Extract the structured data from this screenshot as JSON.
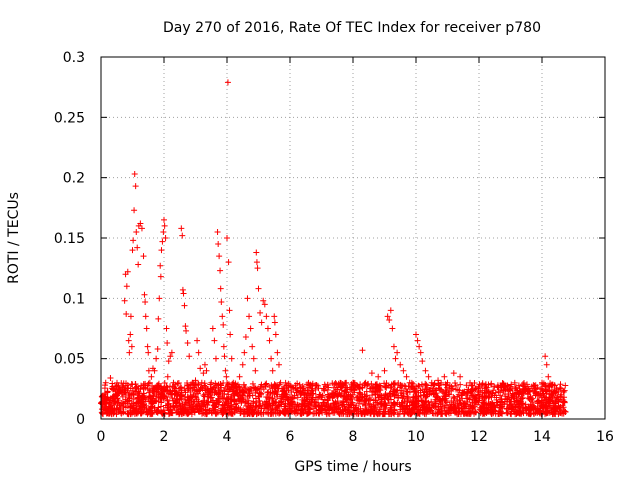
{
  "chart_data": {
    "type": "scatter",
    "title": "Day 270 of 2016, Rate Of TEC Index for receiver p780",
    "xlabel": "GPS time / hours",
    "ylabel": "ROTI / TECUs",
    "xlim": [
      0,
      16
    ],
    "ylim": [
      0,
      0.3
    ],
    "x_ticks": [
      0,
      2,
      4,
      6,
      8,
      10,
      12,
      14,
      16
    ],
    "x_tick_labels": [
      "0",
      "2",
      "4",
      "6",
      "8",
      "10",
      "12",
      "14",
      "16"
    ],
    "y_ticks": [
      0,
      0.05,
      0.1,
      0.15,
      0.2,
      0.25,
      0.3
    ],
    "y_tick_labels": [
      "0",
      "0.05",
      "0.1",
      "0.15",
      "0.2",
      "0.25",
      "0.3"
    ],
    "grid": true,
    "marker": "+",
    "color": "#ff0000",
    "series": [
      {
        "name": "ROTI",
        "points": [
          [
            0.05,
            0.012
          ],
          [
            0.1,
            0.018
          ],
          [
            0.15,
            0.03
          ],
          [
            0.2,
            0.022
          ],
          [
            0.3,
            0.034
          ],
          [
            0.4,
            0.025
          ],
          [
            0.5,
            0.02
          ],
          [
            0.55,
            0.028
          ],
          [
            0.6,
            0.024
          ],
          [
            0.7,
            0.026
          ],
          [
            0.75,
            0.098
          ],
          [
            0.78,
            0.12
          ],
          [
            0.8,
            0.087
          ],
          [
            0.82,
            0.11
          ],
          [
            0.85,
            0.122
          ],
          [
            0.88,
            0.065
          ],
          [
            0.9,
            0.055
          ],
          [
            0.93,
            0.07
          ],
          [
            0.95,
            0.085
          ],
          [
            0.98,
            0.06
          ],
          [
            1.0,
            0.14
          ],
          [
            1.02,
            0.148
          ],
          [
            1.05,
            0.173
          ],
          [
            1.07,
            0.203
          ],
          [
            1.1,
            0.193
          ],
          [
            1.12,
            0.155
          ],
          [
            1.15,
            0.142
          ],
          [
            1.18,
            0.128
          ],
          [
            1.2,
            0.16
          ],
          [
            1.25,
            0.162
          ],
          [
            1.3,
            0.158
          ],
          [
            1.35,
            0.135
          ],
          [
            1.38,
            0.103
          ],
          [
            1.4,
            0.097
          ],
          [
            1.42,
            0.085
          ],
          [
            1.45,
            0.075
          ],
          [
            1.48,
            0.06
          ],
          [
            1.5,
            0.055
          ],
          [
            1.52,
            0.04
          ],
          [
            1.55,
            0.03
          ],
          [
            1.6,
            0.035
          ],
          [
            1.65,
            0.042
          ],
          [
            1.7,
            0.04
          ],
          [
            1.75,
            0.05
          ],
          [
            1.8,
            0.058
          ],
          [
            1.82,
            0.083
          ],
          [
            1.85,
            0.1
          ],
          [
            1.88,
            0.127
          ],
          [
            1.9,
            0.118
          ],
          [
            1.92,
            0.14
          ],
          [
            1.95,
            0.147
          ],
          [
            1.98,
            0.155
          ],
          [
            2.0,
            0.165
          ],
          [
            2.02,
            0.16
          ],
          [
            2.05,
            0.15
          ],
          [
            2.08,
            0.075
          ],
          [
            2.1,
            0.063
          ],
          [
            2.12,
            0.035
          ],
          [
            2.15,
            0.048
          ],
          [
            2.2,
            0.052
          ],
          [
            2.25,
            0.055
          ],
          [
            2.3,
            0.03
          ],
          [
            2.4,
            0.02
          ],
          [
            2.5,
            0.025
          ],
          [
            2.55,
            0.158
          ],
          [
            2.58,
            0.152
          ],
          [
            2.6,
            0.107
          ],
          [
            2.62,
            0.104
          ],
          [
            2.65,
            0.094
          ],
          [
            2.68,
            0.077
          ],
          [
            2.7,
            0.073
          ],
          [
            2.75,
            0.063
          ],
          [
            2.8,
            0.052
          ],
          [
            2.85,
            0.028
          ],
          [
            2.9,
            0.03
          ],
          [
            3.0,
            0.032
          ],
          [
            3.05,
            0.065
          ],
          [
            3.1,
            0.055
          ],
          [
            3.15,
            0.042
          ],
          [
            3.2,
            0.03
          ],
          [
            3.25,
            0.038
          ],
          [
            3.3,
            0.045
          ],
          [
            3.35,
            0.04
          ],
          [
            3.4,
            0.025
          ],
          [
            3.5,
            0.03
          ],
          [
            3.55,
            0.075
          ],
          [
            3.6,
            0.065
          ],
          [
            3.65,
            0.05
          ],
          [
            3.7,
            0.155
          ],
          [
            3.72,
            0.145
          ],
          [
            3.75,
            0.135
          ],
          [
            3.78,
            0.123
          ],
          [
            3.8,
            0.108
          ],
          [
            3.82,
            0.097
          ],
          [
            3.85,
            0.085
          ],
          [
            3.88,
            0.078
          ],
          [
            3.9,
            0.06
          ],
          [
            3.92,
            0.052
          ],
          [
            3.95,
            0.04
          ],
          [
            3.98,
            0.035
          ],
          [
            4.0,
            0.15
          ],
          [
            4.03,
            0.279
          ],
          [
            4.05,
            0.13
          ],
          [
            4.08,
            0.09
          ],
          [
            4.1,
            0.07
          ],
          [
            4.15,
            0.05
          ],
          [
            4.2,
            0.03
          ],
          [
            4.3,
            0.025
          ],
          [
            4.4,
            0.035
          ],
          [
            4.5,
            0.045
          ],
          [
            4.55,
            0.055
          ],
          [
            4.6,
            0.068
          ],
          [
            4.65,
            0.1
          ],
          [
            4.7,
            0.085
          ],
          [
            4.75,
            0.075
          ],
          [
            4.8,
            0.06
          ],
          [
            4.85,
            0.05
          ],
          [
            4.9,
            0.04
          ],
          [
            4.93,
            0.138
          ],
          [
            4.95,
            0.13
          ],
          [
            4.97,
            0.125
          ],
          [
            5.0,
            0.108
          ],
          [
            5.05,
            0.088
          ],
          [
            5.1,
            0.08
          ],
          [
            5.15,
            0.098
          ],
          [
            5.2,
            0.095
          ],
          [
            5.25,
            0.085
          ],
          [
            5.3,
            0.075
          ],
          [
            5.35,
            0.065
          ],
          [
            5.4,
            0.05
          ],
          [
            5.45,
            0.04
          ],
          [
            5.5,
            0.085
          ],
          [
            5.52,
            0.08
          ],
          [
            5.55,
            0.07
          ],
          [
            5.6,
            0.055
          ],
          [
            5.65,
            0.045
          ],
          [
            5.7,
            0.03
          ],
          [
            5.8,
            0.025
          ],
          [
            5.9,
            0.02
          ],
          [
            6.0,
            0.018
          ],
          [
            6.2,
            0.022
          ],
          [
            6.4,
            0.025
          ],
          [
            6.6,
            0.02
          ],
          [
            6.8,
            0.028
          ],
          [
            7.0,
            0.018
          ],
          [
            7.2,
            0.024
          ],
          [
            7.4,
            0.02
          ],
          [
            7.6,
            0.026
          ],
          [
            7.8,
            0.022
          ],
          [
            8.0,
            0.03
          ],
          [
            8.2,
            0.025
          ],
          [
            8.3,
            0.057
          ],
          [
            8.4,
            0.03
          ],
          [
            8.6,
            0.038
          ],
          [
            8.8,
            0.035
          ],
          [
            9.0,
            0.04
          ],
          [
            9.1,
            0.085
          ],
          [
            9.15,
            0.082
          ],
          [
            9.2,
            0.09
          ],
          [
            9.25,
            0.075
          ],
          [
            9.3,
            0.06
          ],
          [
            9.35,
            0.05
          ],
          [
            9.4,
            0.055
          ],
          [
            9.5,
            0.045
          ],
          [
            9.6,
            0.04
          ],
          [
            9.7,
            0.035
          ],
          [
            9.8,
            0.03
          ],
          [
            10.0,
            0.07
          ],
          [
            10.05,
            0.065
          ],
          [
            10.1,
            0.06
          ],
          [
            10.15,
            0.055
          ],
          [
            10.2,
            0.048
          ],
          [
            10.3,
            0.04
          ],
          [
            10.4,
            0.035
          ],
          [
            10.5,
            0.03
          ],
          [
            10.7,
            0.032
          ],
          [
            10.9,
            0.035
          ],
          [
            11.0,
            0.03
          ],
          [
            11.2,
            0.038
          ],
          [
            11.4,
            0.035
          ],
          [
            11.6,
            0.028
          ],
          [
            11.8,
            0.025
          ],
          [
            12.0,
            0.02
          ],
          [
            12.3,
            0.022
          ],
          [
            12.6,
            0.028
          ],
          [
            12.9,
            0.025
          ],
          [
            13.2,
            0.022
          ],
          [
            13.5,
            0.025
          ],
          [
            13.8,
            0.028
          ],
          [
            14.0,
            0.03
          ],
          [
            14.1,
            0.052
          ],
          [
            14.15,
            0.045
          ],
          [
            14.2,
            0.035
          ],
          [
            14.4,
            0.028
          ],
          [
            14.6,
            0.025
          ],
          [
            14.7,
            0.018
          ]
        ]
      }
    ],
    "background_band": {
      "x_range": [
        0.0,
        14.75
      ],
      "y_range": [
        0.004,
        0.03
      ],
      "description": "dense cluster of low ROTI values"
    }
  }
}
